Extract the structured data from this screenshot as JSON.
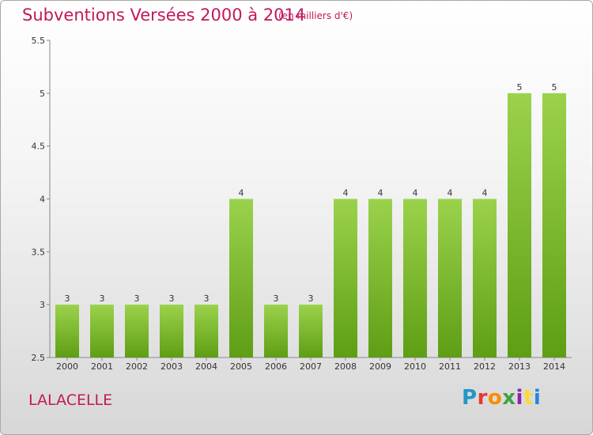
{
  "header": {
    "title": "Subventions Versées 2000 à 2014",
    "subtitle": "(en milliers d'€)"
  },
  "footer": {
    "commune": "LALACELLE",
    "brand": "Proxiti",
    "brand_colors": [
      "#2196c9",
      "#e53935",
      "#fb8c00",
      "#43a047",
      "#8e24aa",
      "#fdd835",
      "#1e88e5"
    ]
  },
  "colors": {
    "bar_top": "#9bd24c",
    "bar_bottom": "#5e9e14",
    "title": "#c2185b",
    "axis": "#888888"
  },
  "chart_data": {
    "type": "bar",
    "categories": [
      "2000",
      "2001",
      "2002",
      "2003",
      "2004",
      "2005",
      "2006",
      "2007",
      "2008",
      "2009",
      "2010",
      "2011",
      "2012",
      "2013",
      "2014"
    ],
    "values": [
      3,
      3,
      3,
      3,
      3,
      4,
      3,
      3,
      4,
      4,
      4,
      4,
      4,
      5,
      5
    ],
    "data_labels": [
      "3",
      "3",
      "3",
      "3",
      "3",
      "4",
      "3",
      "3",
      "4",
      "4",
      "4",
      "4",
      "4",
      "5",
      "5"
    ],
    "ylim": [
      2.5,
      5.5
    ],
    "yticks": [
      2.5,
      3,
      3.5,
      4,
      4.5,
      5,
      5.5
    ],
    "ytick_labels": [
      "2.5",
      "3",
      "3.5",
      "4",
      "4.5",
      "5",
      "5.5"
    ],
    "title": "Subventions Versées 2000 à 2014",
    "xlabel": "",
    "ylabel": "",
    "grid": false,
    "legend": "none"
  }
}
